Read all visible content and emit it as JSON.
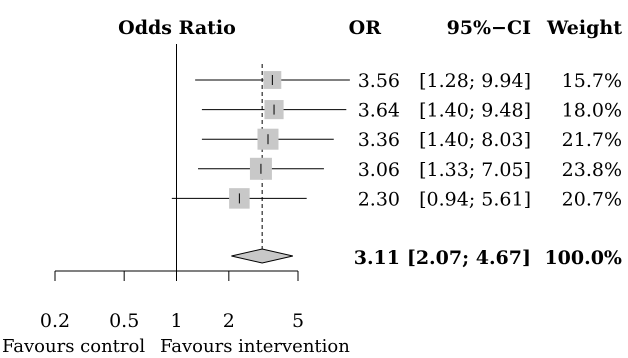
{
  "chart_data": {
    "type": "forest",
    "scale": "log",
    "headers": {
      "plot": "Odds Ratio",
      "or": "OR",
      "ci": "95%−CI",
      "weight": "Weight"
    },
    "reference_line": 1,
    "pooled_line": 3.11,
    "studies": [
      {
        "or": 3.56,
        "lo": 1.28,
        "hi": 9.94,
        "weight": 15.7,
        "or_text": "3.56",
        "ci_text": "[1.28; 9.94]",
        "weight_text": "15.7%"
      },
      {
        "or": 3.64,
        "lo": 1.4,
        "hi": 9.48,
        "weight": 18.0,
        "or_text": "3.64",
        "ci_text": "[1.40; 9.48]",
        "weight_text": "18.0%"
      },
      {
        "or": 3.36,
        "lo": 1.4,
        "hi": 8.03,
        "weight": 21.7,
        "or_text": "3.36",
        "ci_text": "[1.40; 8.03]",
        "weight_text": "21.7%"
      },
      {
        "or": 3.06,
        "lo": 1.33,
        "hi": 7.05,
        "weight": 23.8,
        "or_text": "3.06",
        "ci_text": "[1.33; 7.05]",
        "weight_text": "23.8%"
      },
      {
        "or": 2.3,
        "lo": 0.94,
        "hi": 5.61,
        "weight": 20.7,
        "or_text": "2.30",
        "ci_text": "[0.94; 5.61]",
        "weight_text": "20.7%"
      }
    ],
    "pooled": {
      "or": 3.11,
      "lo": 2.07,
      "hi": 4.67,
      "weight": 100.0,
      "or_text": "3.11",
      "ci_text": "[2.07; 4.67]",
      "weight_text": "100.0%"
    },
    "x_ticks": [
      {
        "value": 0.2,
        "label": "0.2"
      },
      {
        "value": 0.5,
        "label": "0.5"
      },
      {
        "value": 1,
        "label": "1"
      },
      {
        "value": 2,
        "label": "2"
      },
      {
        "value": 5,
        "label": "5"
      }
    ],
    "xlim": [
      0.2,
      5
    ],
    "favours_left": "Favours control",
    "favours_right": "Favours intervention",
    "colors": {
      "box": "#c8c8c8",
      "diamond": "#c8c8c8",
      "line": "#000000"
    }
  }
}
